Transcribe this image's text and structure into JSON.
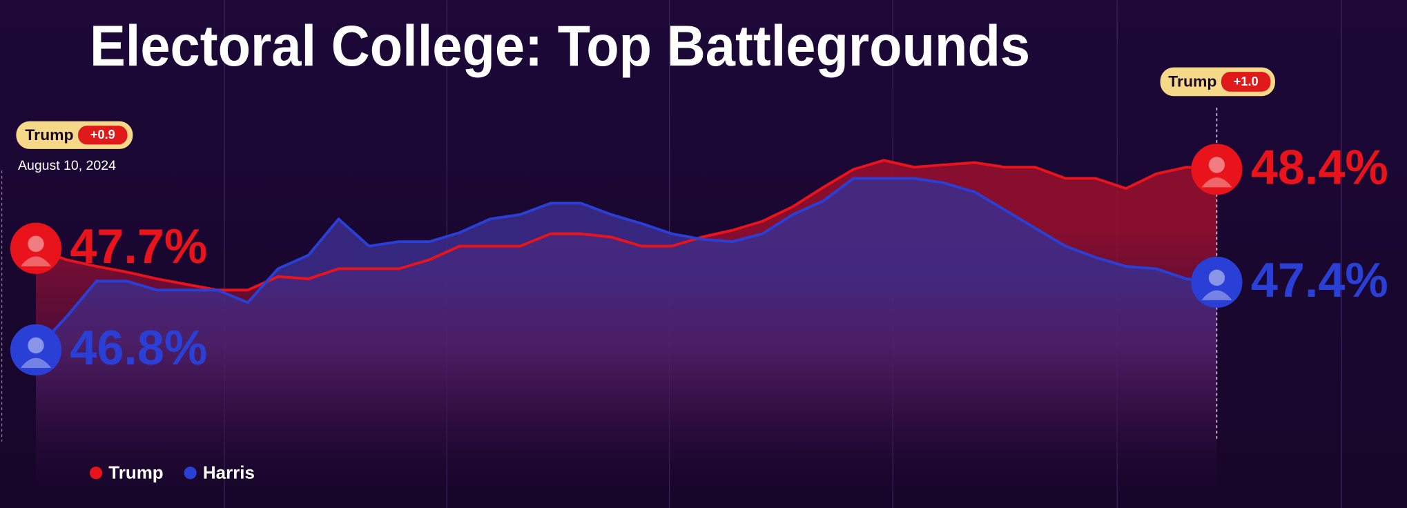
{
  "chart_data": {
    "type": "line",
    "title": "Electoral College: Top Battlegrounds",
    "categories": [
      "August 10, 2024",
      null,
      null,
      null,
      null,
      null,
      null,
      null,
      null,
      null,
      null,
      null,
      null,
      null,
      null,
      null,
      null,
      null,
      null,
      null,
      null,
      null,
      null,
      null,
      null,
      null,
      null,
      null,
      null,
      null,
      null,
      null,
      null,
      null,
      null,
      null,
      null,
      null,
      null,
      null
    ],
    "ylim": [
      45.4,
      49.9
    ],
    "series": [
      {
        "name": "Trump",
        "color": "#e8131b",
        "values": [
          47.7,
          47.6,
          47.54,
          47.49,
          47.43,
          47.38,
          47.33,
          47.33,
          47.45,
          47.43,
          47.52,
          47.52,
          47.52,
          47.6,
          47.72,
          47.72,
          47.72,
          47.83,
          47.83,
          47.8,
          47.72,
          47.72,
          47.8,
          47.86,
          47.94,
          48.07,
          48.24,
          48.4,
          48.48,
          48.42,
          48.44,
          48.46,
          48.42,
          48.42,
          48.32,
          48.32,
          48.23,
          48.36,
          48.42,
          48.4
        ],
        "value_labels": [
          "47.7%",
          null,
          null,
          null,
          null,
          null,
          null,
          null,
          null,
          null,
          null,
          null,
          null,
          null,
          null,
          null,
          null,
          null,
          null,
          null,
          null,
          null,
          null,
          null,
          null,
          null,
          null,
          null,
          null,
          null,
          null,
          null,
          null,
          null,
          null,
          null,
          null,
          null,
          null,
          "48.4%"
        ]
      },
      {
        "name": "Harris",
        "color": "#2a3fd6",
        "values": [
          46.8,
          47.09,
          47.41,
          47.41,
          47.33,
          47.33,
          47.33,
          47.22,
          47.52,
          47.64,
          47.96,
          47.72,
          47.76,
          47.76,
          47.84,
          47.96,
          48.0,
          48.1,
          48.1,
          48.0,
          47.92,
          47.83,
          47.78,
          47.76,
          47.83,
          48.0,
          48.12,
          48.32,
          48.32,
          48.32,
          48.28,
          48.2,
          48.04,
          47.88,
          47.72,
          47.62,
          47.54,
          47.52,
          47.43,
          47.4
        ],
        "value_labels": [
          "46.8%",
          null,
          null,
          null,
          null,
          null,
          null,
          null,
          null,
          null,
          null,
          null,
          null,
          null,
          null,
          null,
          null,
          null,
          null,
          null,
          null,
          null,
          null,
          null,
          null,
          null,
          null,
          null,
          null,
          null,
          null,
          null,
          null,
          null,
          null,
          null,
          null,
          null,
          null,
          "47.4%"
        ]
      }
    ],
    "annotations": [
      {
        "leader": "Trump",
        "lead": "+0.9"
      },
      {
        "leader": "Trump",
        "lead": "+1.0"
      }
    ]
  }
}
